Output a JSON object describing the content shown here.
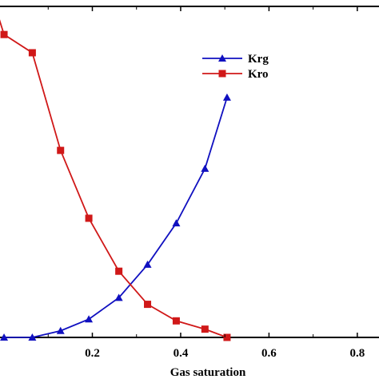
{
  "chart_data": {
    "type": "line",
    "xlabel": "Gas saturation",
    "ylabel": "",
    "xlim": [
      -0.02,
      0.86
    ],
    "ylim": [
      0,
      1.0
    ],
    "x_ticks": [
      0.2,
      0.4,
      0.6,
      0.8
    ],
    "x_tick_labels": [
      "0.2",
      "0.4",
      "0.6",
      "0.8"
    ],
    "grid": false,
    "legend_position": "top-right",
    "series": [
      {
        "name": "Krg",
        "color": "#1010c0",
        "marker": "triangle",
        "x": [
          0.0,
          0.064,
          0.128,
          0.192,
          0.26,
          0.325,
          0.39,
          0.455,
          0.505
        ],
        "y": [
          0.0,
          0.0,
          0.02,
          0.055,
          0.12,
          0.22,
          0.345,
          0.51,
          0.725
        ]
      },
      {
        "name": "Kro",
        "color": "#d01818",
        "marker": "square",
        "x": [
          -0.02,
          0.0,
          0.064,
          0.128,
          0.192,
          0.26,
          0.325,
          0.39,
          0.455,
          0.505
        ],
        "y": [
          1.0,
          0.915,
          0.86,
          0.565,
          0.36,
          0.2,
          0.1,
          0.05,
          0.025,
          0.0
        ]
      }
    ]
  }
}
